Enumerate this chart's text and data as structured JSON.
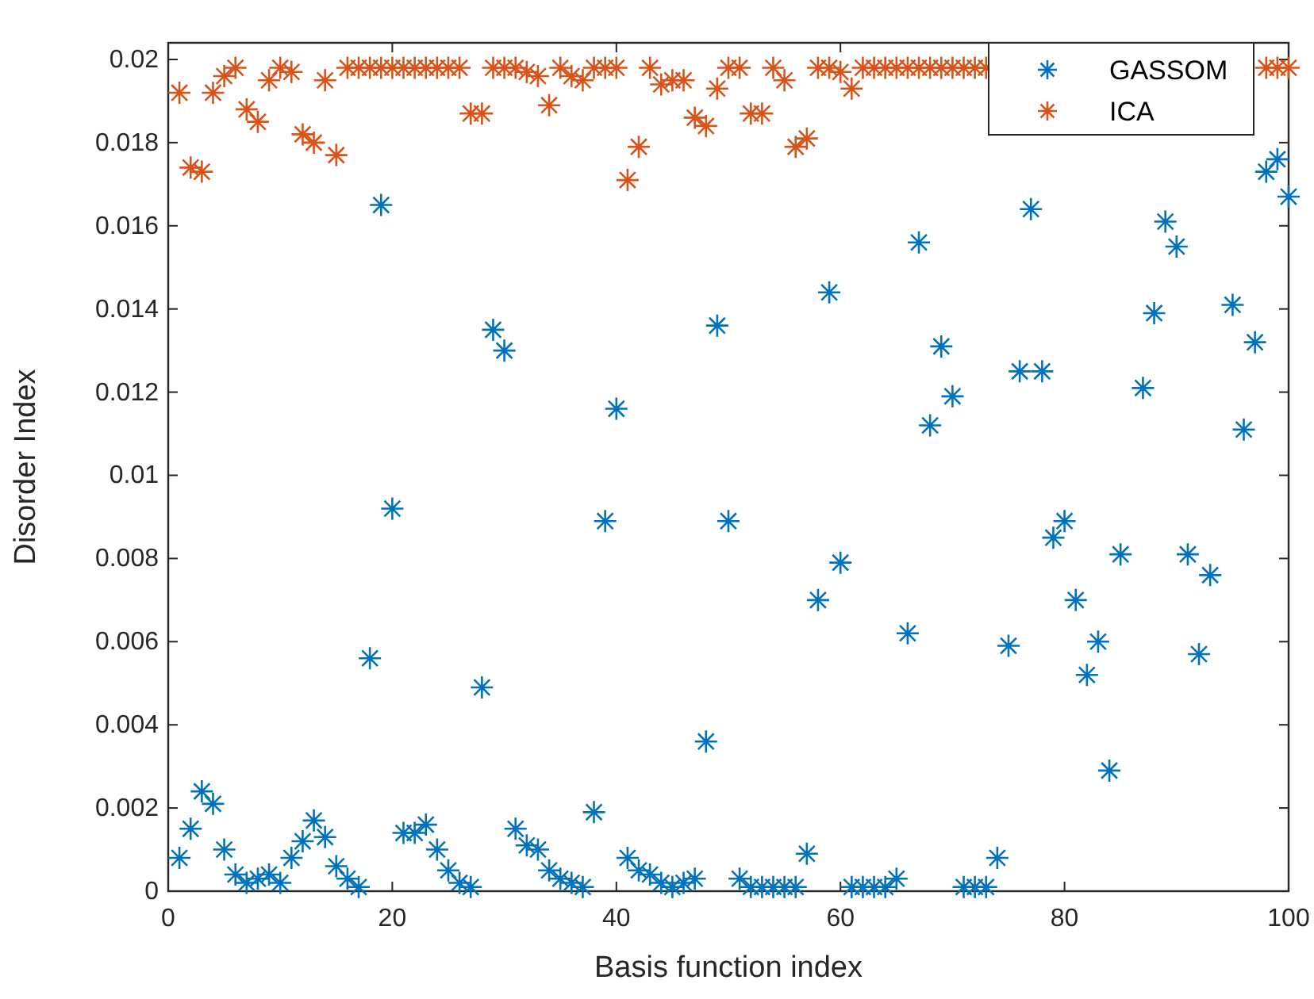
{
  "chart_data": {
    "type": "scatter",
    "xlabel": "Basis function index",
    "ylabel": "Disorder Index",
    "series": [
      {
        "name": "GASSOM",
        "color": "#0072bd",
        "x": [
          1,
          2,
          3,
          4,
          5,
          6,
          7,
          8,
          9,
          10,
          11,
          12,
          13,
          14,
          15,
          16,
          17,
          18,
          19,
          20,
          21,
          22,
          23,
          24,
          25,
          26,
          27,
          28,
          29,
          30,
          31,
          32,
          33,
          34,
          35,
          36,
          37,
          38,
          39,
          40,
          41,
          42,
          43,
          44,
          45,
          46,
          47,
          48,
          49,
          50,
          51,
          52,
          53,
          54,
          55,
          56,
          57,
          58,
          59,
          60,
          61,
          62,
          63,
          64,
          65,
          66,
          67,
          68,
          69,
          70,
          71,
          72,
          73,
          74,
          75,
          76,
          77,
          78,
          79,
          80,
          81,
          82,
          83,
          84,
          85,
          87,
          88,
          89,
          90,
          91,
          92,
          93,
          95,
          96,
          97,
          98,
          99,
          100
        ],
        "values": [
          0.0008,
          0.0015,
          0.0024,
          0.0021,
          0.001,
          0.0004,
          0.0002,
          0.0003,
          0.0004,
          0.0002,
          0.0008,
          0.0012,
          0.0017,
          0.0013,
          0.0006,
          0.0003,
          0.0001,
          0.0056,
          0.0165,
          0.0092,
          0.0014,
          0.0014,
          0.0016,
          0.001,
          0.0005,
          0.0002,
          0.0001,
          0.0049,
          0.0135,
          0.013,
          0.0015,
          0.0011,
          0.001,
          0.0005,
          0.0003,
          0.0002,
          0.0001,
          0.0019,
          0.0089,
          0.0116,
          0.0008,
          0.0005,
          0.0004,
          0.0002,
          0.0001,
          0.0002,
          0.0003,
          0.0036,
          0.0136,
          0.0089,
          0.0003,
          0.0001,
          0.0001,
          0.0001,
          0.0001,
          0.0001,
          0.0009,
          0.007,
          0.0144,
          0.0079,
          0.0001,
          0.0001,
          0.0001,
          0.0001,
          0.0003,
          0.0062,
          0.0156,
          0.0112,
          0.0131,
          0.0119,
          0.0001,
          0.0001,
          0.0001,
          0.0008,
          0.0059,
          0.0125,
          0.0164,
          0.0125,
          0.0085,
          0.0089,
          0.007,
          0.0052,
          0.006,
          0.0029,
          0.0081,
          0.0121,
          0.0139,
          0.0161,
          0.0155,
          0.0081,
          0.0057,
          0.0076,
          0.0141,
          0.0111,
          0.0132,
          0.0173,
          0.0176,
          0.0167
        ]
      },
      {
        "name": "ICA",
        "color": "#d95319",
        "x": [
          1,
          2,
          3,
          4,
          5,
          6,
          7,
          8,
          9,
          10,
          11,
          12,
          13,
          14,
          15,
          16,
          17,
          18,
          19,
          20,
          21,
          22,
          23,
          24,
          25,
          26,
          27,
          28,
          29,
          30,
          31,
          32,
          33,
          34,
          35,
          36,
          37,
          38,
          39,
          40,
          41,
          42,
          43,
          44,
          45,
          46,
          47,
          48,
          49,
          50,
          51,
          52,
          53,
          54,
          55,
          56,
          57,
          58,
          59,
          60,
          61,
          62,
          63,
          64,
          65,
          66,
          67,
          68,
          69,
          70,
          71,
          72,
          73,
          98,
          99,
          100
        ],
        "values": [
          0.0192,
          0.0174,
          0.0173,
          0.0192,
          0.0196,
          0.0198,
          0.0188,
          0.0185,
          0.0195,
          0.0198,
          0.0197,
          0.0182,
          0.018,
          0.0195,
          0.0177,
          0.0198,
          0.0198,
          0.0198,
          0.0198,
          0.0198,
          0.0198,
          0.0198,
          0.0198,
          0.0198,
          0.0198,
          0.0198,
          0.0187,
          0.0187,
          0.0198,
          0.0198,
          0.0198,
          0.0197,
          0.0196,
          0.0189,
          0.0198,
          0.0196,
          0.0195,
          0.0198,
          0.0198,
          0.0198,
          0.0171,
          0.0179,
          0.0198,
          0.0194,
          0.0195,
          0.0195,
          0.0186,
          0.0184,
          0.0193,
          0.0198,
          0.0198,
          0.0187,
          0.0187,
          0.0198,
          0.0195,
          0.0179,
          0.0181,
          0.0198,
          0.0198,
          0.0197,
          0.0193,
          0.0198,
          0.0198,
          0.0198,
          0.0198,
          0.0198,
          0.0198,
          0.0198,
          0.0198,
          0.0198,
          0.0198,
          0.0198,
          0.0198,
          0.0198,
          0.0198,
          0.0198
        ]
      }
    ],
    "xlim": [
      0,
      100
    ],
    "xticks": [
      0,
      20,
      40,
      60,
      80,
      100
    ],
    "ylim": [
      0,
      0.0204
    ],
    "yticks": [
      0,
      0.002,
      0.004,
      0.006,
      0.008,
      0.01,
      0.012,
      0.014,
      0.016,
      0.018,
      0.02
    ],
    "grid": false,
    "legend": "top right",
    "marker": "cross"
  }
}
